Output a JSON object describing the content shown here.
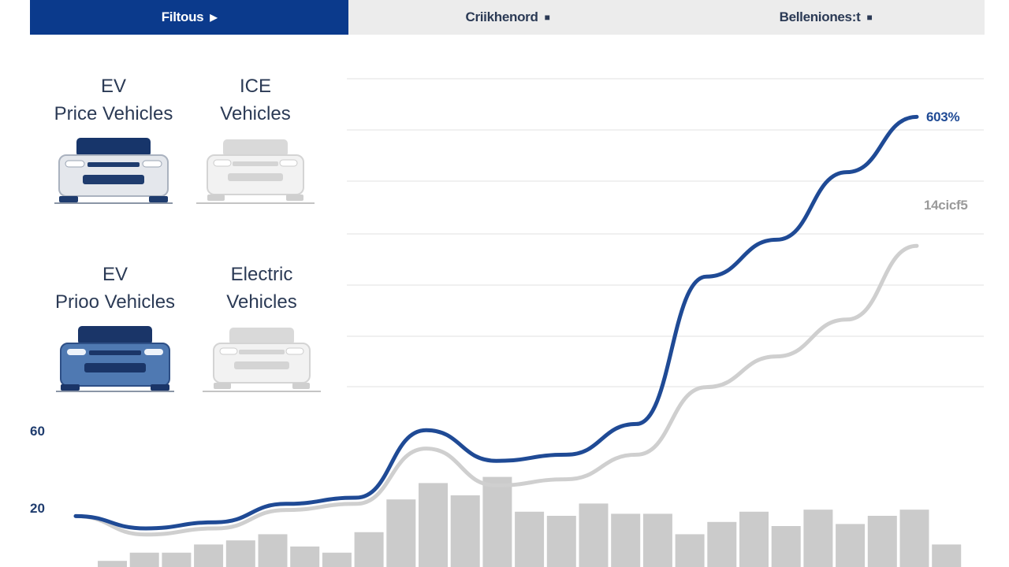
{
  "tabs": [
    {
      "label": "Filtous",
      "active": true
    },
    {
      "label": "Criikhenord",
      "active": false
    },
    {
      "label": "Belleniones:t",
      "active": false
    }
  ],
  "cards": [
    {
      "line1": "EV",
      "line2": "Price Vehicles",
      "style": "ev-navy"
    },
    {
      "line1": "ICE",
      "line2": "Vehicles",
      "style": "ice-gray"
    },
    {
      "line1": "EV",
      "line2": "Prioo Vehicles",
      "style": "ev-blue"
    },
    {
      "line1": "Electric",
      "line2": "Vehicles",
      "style": "ice-gray"
    }
  ],
  "colors": {
    "accent": "#0b3a8c",
    "series_ev": "#1f4a95",
    "series_ice": "#cfcfcf",
    "bars": "#cbcbcb",
    "grid": "#f0f0f0"
  },
  "chart_data": {
    "type": "line",
    "title": "",
    "xlabel": "",
    "ylabel": "",
    "y_ticks": [
      "60",
      "20"
    ],
    "grid": true,
    "series": [
      {
        "name": "",
        "end_label": "603%",
        "values": [
          32,
          30,
          31,
          34,
          35,
          46,
          41,
          42,
          47,
          71,
          77,
          88,
          97
        ]
      },
      {
        "name": "",
        "end_label": "14cicf5",
        "values": [
          32,
          29,
          30,
          33,
          34,
          43,
          37,
          38,
          42,
          53,
          58,
          64,
          76
        ]
      }
    ],
    "bars": {
      "values": [
        3,
        7,
        7,
        11,
        13,
        16,
        10,
        7,
        17,
        33,
        41,
        35,
        44,
        27,
        25,
        31,
        26,
        26,
        16,
        22,
        27,
        20,
        28,
        21,
        25,
        28,
        11
      ]
    }
  }
}
